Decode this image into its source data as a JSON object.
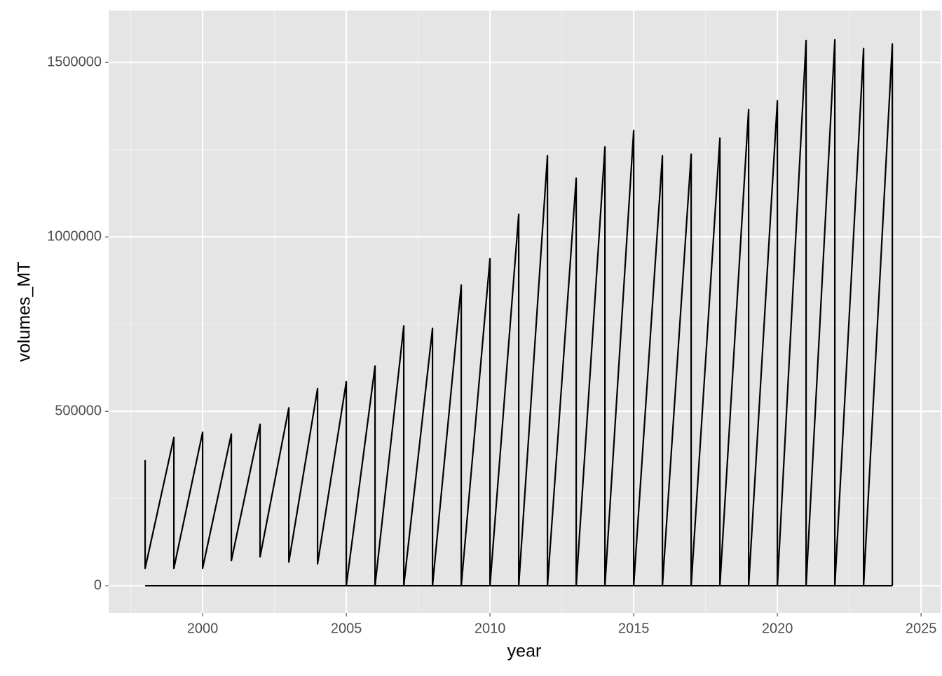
{
  "chart_data": {
    "type": "line",
    "x_label": "year",
    "y_label": "volumes_MT",
    "x": [
      1998,
      1998,
      1999,
      1999,
      2000,
      2000,
      2001,
      2001,
      2002,
      2002,
      2003,
      2003,
      2004,
      2004,
      2005,
      2005,
      2006,
      2006,
      2007,
      2007,
      2008,
      2008,
      2009,
      2009,
      2010,
      2010,
      2011,
      2011,
      2012,
      2012,
      2013,
      2013,
      2014,
      2014,
      2015,
      2015,
      2016,
      2016,
      2017,
      2017,
      2018,
      2018,
      2019,
      2019,
      2020,
      2020,
      2021,
      2021,
      2022,
      2022,
      2023,
      2023,
      2024,
      2024,
      null,
      1998,
      2024
    ],
    "series": [
      {
        "name": "volumes_MT",
        "color": "#000000",
        "values": [
          360000,
          50000,
          425000,
          50000,
          440000,
          50000,
          435000,
          72000,
          463000,
          83000,
          510000,
          68000,
          565000,
          63000,
          585000,
          0,
          630000,
          0,
          745000,
          0,
          738000,
          0,
          862000,
          0,
          938000,
          0,
          1065000,
          0,
          1233000,
          0,
          1168000,
          0,
          1258000,
          0,
          1305000,
          0,
          1233000,
          0,
          1237000,
          0,
          1283000,
          0,
          1365000,
          0,
          1390000,
          0,
          1563000,
          0,
          1565000,
          0,
          1540000,
          0,
          1553000,
          0,
          null,
          0,
          0
        ]
      }
    ],
    "xlim": [
      1996.73,
      2025.68
    ],
    "xticks": [
      2000,
      2005,
      2010,
      2015,
      2020,
      2025
    ],
    "ylim": [
      -78000,
      1649000
    ],
    "yticks": [
      0,
      500000,
      1000000,
      1500000
    ],
    "grid": true
  }
}
